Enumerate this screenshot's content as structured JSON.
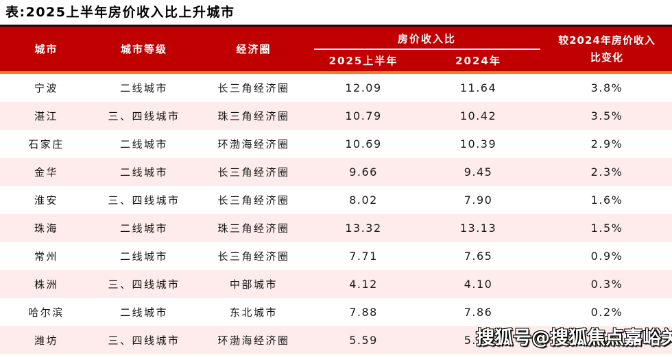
{
  "page_title": "表:2025上半年房价收入比上升城市",
  "colors": {
    "header_red": "#c00000",
    "header_top_border": "#250404",
    "accent_orange": "#ed7d31",
    "row_pink": "#fdeceb",
    "header_text": "#ffffff",
    "body_text": "#141414"
  },
  "header": {
    "city": "城市",
    "tier": "城市等级",
    "circle": "经济圈",
    "ratio_group": "房价收入比",
    "col_2025h1": "2025上半年",
    "col_2024": "2024年",
    "change_line1": "较2024年房价收入",
    "change_line2": "比变化"
  },
  "rows": [
    {
      "city": "宁波",
      "tier": "二线城市",
      "circle": "长三角经济圈",
      "h1_2025": "12.09",
      "y2024": "11.64",
      "change": "3.8%"
    },
    {
      "city": "湛江",
      "tier": "三、四线城市",
      "circle": "珠三角经济圈",
      "h1_2025": "10.79",
      "y2024": "10.42",
      "change": "3.5%"
    },
    {
      "city": "石家庄",
      "tier": "二线城市",
      "circle": "环渤海经济圈",
      "h1_2025": "10.69",
      "y2024": "10.39",
      "change": "2.9%"
    },
    {
      "city": "金华",
      "tier": "二线城市",
      "circle": "长三角经济圈",
      "h1_2025": "9.66",
      "y2024": "9.45",
      "change": "2.3%"
    },
    {
      "city": "淮安",
      "tier": "三、四线城市",
      "circle": "长三角经济圈",
      "h1_2025": "8.02",
      "y2024": "7.90",
      "change": "1.6%"
    },
    {
      "city": "珠海",
      "tier": "二线城市",
      "circle": "珠三角经济圈",
      "h1_2025": "13.32",
      "y2024": "13.13",
      "change": "1.5%"
    },
    {
      "city": "常州",
      "tier": "二线城市",
      "circle": "长三角经济圈",
      "h1_2025": "7.71",
      "y2024": "7.65",
      "change": "0.9%"
    },
    {
      "city": "株洲",
      "tier": "三、四线城市",
      "circle": "中部城市",
      "h1_2025": "4.12",
      "y2024": "4.10",
      "change": "0.3%"
    },
    {
      "city": "哈尔滨",
      "tier": "二线城市",
      "circle": "东北城市",
      "h1_2025": "7.88",
      "y2024": "7.86",
      "change": "0.2%"
    },
    {
      "city": "潍坊",
      "tier": "三、四线城市",
      "circle": "环渤海经济圈",
      "h1_2025": "5.59",
      "y2024": "5.58",
      "change": "0.2%"
    }
  ],
  "watermark": "搜狐号@搜狐焦点嘉峪关站"
}
